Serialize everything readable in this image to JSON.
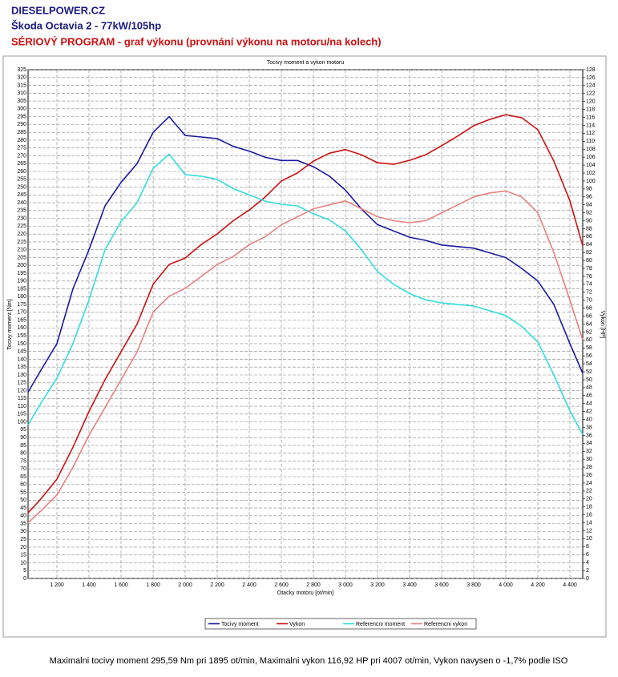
{
  "header": {
    "site": "DIESELPOWER.CZ",
    "model": "Škoda Octavia 2 - 77kW/105hp",
    "program": "SÉRIOVÝ PROGRAM - graf výkonu (provnání výkonu na motoru/na kolech)"
  },
  "chart_data": {
    "type": "line",
    "title": "Tocivy moment a vykon motoru",
    "x_label": "Otacky motoru [ot/min]",
    "y_label": "Tocivy moment [Nm]",
    "y2_label": "Vykon [HP]",
    "x": [
      1020,
      1100,
      1200,
      1300,
      1400,
      1500,
      1600,
      1700,
      1800,
      1900,
      2000,
      2100,
      2200,
      2300,
      2400,
      2500,
      2600,
      2700,
      2800,
      2900,
      3000,
      3100,
      3200,
      3300,
      3400,
      3500,
      3600,
      3700,
      3800,
      3900,
      4000,
      4100,
      4200,
      4300,
      4400,
      4480
    ],
    "series": [
      {
        "name": "Tocivy moment",
        "color": "#1a1aa0",
        "values": [
          119,
          133,
          150,
          185,
          210,
          238,
          253,
          265,
          285,
          295,
          283,
          282,
          281,
          276,
          273,
          269,
          267,
          267,
          263,
          257,
          248,
          236,
          226,
          222,
          218,
          216,
          213,
          212,
          211,
          208,
          205,
          198,
          190,
          175,
          150,
          131
        ]
      },
      {
        "name": "Vykon",
        "color": "#cc1111",
        "axis": "y2",
        "values": [
          16.5,
          20,
          25,
          33,
          42,
          50,
          57,
          64,
          74,
          79,
          80.6,
          84,
          86.7,
          90,
          92.7,
          96,
          100,
          102,
          105,
          107,
          107.9,
          106.6,
          104.6,
          104.2,
          105.2,
          106.6,
          108.9,
          111.3,
          113.9,
          115.5,
          116.7,
          115.9,
          112.9,
          105,
          95,
          83.7
        ]
      },
      {
        "name": "Referencni moment",
        "color": "#33dddd",
        "values": [
          98,
          112,
          128,
          150,
          178,
          210,
          228,
          240,
          262,
          271,
          258,
          257,
          255,
          249,
          245,
          241,
          239,
          238,
          233,
          229,
          222,
          210,
          196,
          188,
          182,
          178,
          176,
          175,
          174,
          171,
          168,
          161,
          151,
          130,
          107,
          92
        ]
      },
      {
        "name": "Referencni vykon",
        "color": "#e88080",
        "axis": "y2",
        "values": [
          14,
          17,
          21,
          28,
          36,
          43,
          50,
          57,
          67,
          71,
          73,
          76,
          79,
          81,
          84,
          86,
          89,
          91,
          93,
          94,
          95,
          93,
          91,
          90,
          89.5,
          90,
          92,
          94,
          96,
          97,
          97.5,
          96,
          92,
          82,
          70,
          60
        ]
      }
    ],
    "xlim": [
      1020,
      4480
    ],
    "xticks": [
      {
        "value": 1200,
        "label": "1 200"
      },
      {
        "value": 1400,
        "label": "1 400"
      },
      {
        "value": 1600,
        "label": "1 600"
      },
      {
        "value": 1800,
        "label": "1 800"
      },
      {
        "value": 2000,
        "label": "2 000"
      },
      {
        "value": 2200,
        "label": "2 200"
      },
      {
        "value": 2400,
        "label": "2 400"
      },
      {
        "value": 2600,
        "label": "2 600"
      },
      {
        "value": 2800,
        "label": "2 800"
      },
      {
        "value": 3000,
        "label": "3 000"
      },
      {
        "value": 3200,
        "label": "3 200"
      },
      {
        "value": 3400,
        "label": "3 400"
      },
      {
        "value": 3600,
        "label": "3 600"
      },
      {
        "value": 3800,
        "label": "3 800"
      },
      {
        "value": 4000,
        "label": "4 000"
      },
      {
        "value": 4200,
        "label": "4 200"
      },
      {
        "value": 4400,
        "label": "4 400"
      }
    ],
    "ylim": [
      0,
      325
    ],
    "yticks": [
      0,
      5,
      10,
      15,
      20,
      25,
      30,
      35,
      40,
      45,
      50,
      55,
      60,
      65,
      70,
      75,
      80,
      85,
      90,
      95,
      100,
      105,
      110,
      115,
      120,
      125,
      130,
      135,
      140,
      145,
      150,
      155,
      160,
      165,
      170,
      175,
      180,
      185,
      190,
      195,
      200,
      205,
      210,
      215,
      220,
      225,
      230,
      235,
      240,
      245,
      250,
      255,
      260,
      265,
      270,
      275,
      280,
      285,
      290,
      295,
      300,
      305,
      310,
      315,
      320,
      325
    ],
    "y2lim": [
      0,
      128
    ],
    "y2ticks": [
      0,
      2,
      4,
      6,
      8,
      10,
      12,
      14,
      16,
      18,
      20,
      22,
      24,
      26,
      28,
      30,
      32,
      34,
      36,
      38,
      40,
      42,
      44,
      46,
      48,
      50,
      52,
      54,
      56,
      58,
      60,
      62,
      64,
      66,
      68,
      70,
      72,
      74,
      76,
      78,
      80,
      82,
      84,
      86,
      88,
      90,
      92,
      94,
      96,
      98,
      100,
      102,
      104,
      106,
      108,
      110,
      112,
      114,
      116,
      118,
      120,
      122,
      124,
      126,
      128
    ],
    "grid": true
  },
  "footer": "Maximalni tocivy moment 295,59 Nm pri 1895 ot/min,  Maximalni vykon 116,92 HP pri 4007 ot/min,  Vykon navysen o -1,7% podle ISO"
}
